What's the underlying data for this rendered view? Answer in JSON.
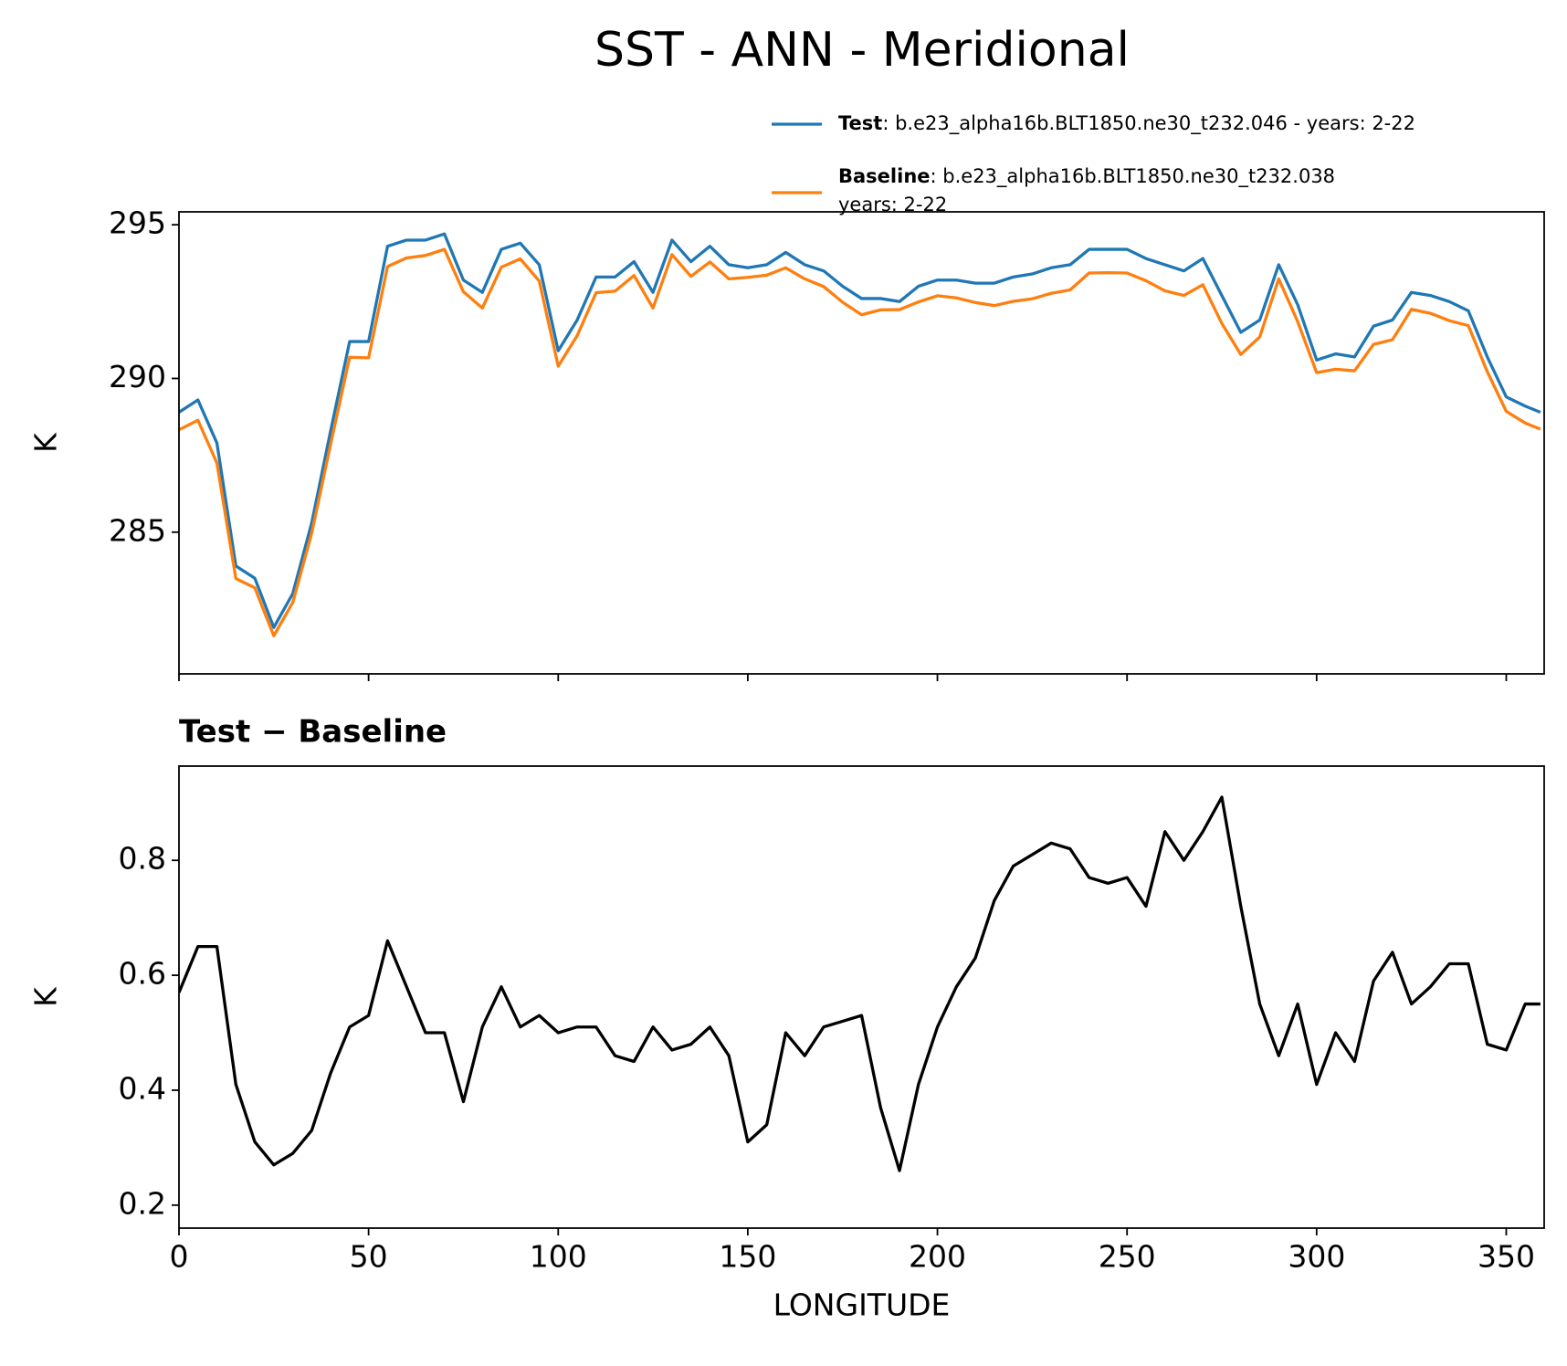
{
  "title": "SST - ANN - Meridional",
  "chart_data": [
    {
      "type": "line",
      "ylabel": "K",
      "x": [
        0,
        5,
        10,
        15,
        20,
        25,
        30,
        35,
        40,
        45,
        50,
        55,
        60,
        65,
        70,
        75,
        80,
        85,
        90,
        95,
        100,
        105,
        110,
        115,
        120,
        125,
        130,
        135,
        140,
        145,
        150,
        155,
        160,
        165,
        170,
        175,
        180,
        185,
        190,
        195,
        200,
        205,
        210,
        215,
        220,
        225,
        230,
        235,
        240,
        245,
        250,
        255,
        260,
        265,
        270,
        275,
        280,
        285,
        290,
        295,
        300,
        305,
        310,
        315,
        320,
        325,
        330,
        335,
        340,
        345,
        350,
        355,
        359
      ],
      "series": [
        {
          "name": "Test",
          "color": "#1f77b4",
          "description": [
            ": b.e23_alpha16b.BLT1850.ne30_t232.046 - years: 2-22"
          ],
          "values": [
            288.9,
            289.3,
            287.9,
            283.9,
            283.5,
            281.9,
            283.0,
            285.3,
            288.3,
            291.2,
            291.2,
            294.3,
            294.5,
            294.5,
            294.7,
            293.2,
            292.8,
            294.2,
            294.4,
            293.7,
            290.9,
            291.9,
            293.3,
            293.3,
            293.8,
            292.8,
            294.5,
            293.8,
            294.3,
            293.7,
            293.6,
            293.7,
            294.1,
            293.7,
            293.5,
            293.0,
            292.6,
            292.6,
            292.5,
            293.0,
            293.2,
            293.2,
            293.1,
            293.1,
            293.3,
            293.4,
            293.6,
            293.7,
            294.2,
            294.2,
            294.2,
            293.9,
            293.7,
            293.5,
            293.9,
            292.7,
            291.5,
            291.9,
            293.7,
            292.4,
            290.6,
            290.8,
            290.7,
            291.7,
            291.9,
            292.8,
            292.7,
            292.5,
            292.2,
            290.7,
            289.4,
            289.1,
            288.9
          ]
        },
        {
          "name": "Baseline",
          "color": "#ff7f0e",
          "description": [
            ": b.e23_alpha16b.BLT1850.ne30_t232.038",
            "years: 2-22"
          ],
          "values": [
            288.33,
            288.64,
            287.25,
            283.49,
            283.19,
            281.63,
            282.71,
            284.97,
            287.87,
            290.69,
            290.67,
            293.64,
            293.92,
            294.0,
            294.2,
            292.82,
            292.29,
            293.62,
            293.89,
            293.17,
            290.4,
            291.39,
            292.79,
            292.84,
            293.35,
            292.29,
            294.03,
            293.32,
            293.79,
            293.24,
            293.29,
            293.36,
            293.6,
            293.24,
            292.99,
            292.48,
            292.07,
            292.23,
            292.24,
            292.49,
            292.69,
            292.62,
            292.47,
            292.37,
            292.51,
            292.59,
            292.77,
            292.88,
            293.43,
            293.44,
            293.43,
            293.18,
            292.85,
            292.7,
            293.05,
            291.79,
            290.78,
            291.35,
            293.24,
            291.85,
            290.19,
            290.3,
            290.25,
            291.11,
            291.26,
            292.25,
            292.12,
            291.88,
            291.72,
            290.22,
            288.93,
            288.55,
            288.35
          ]
        }
      ],
      "xlim": [
        0,
        360
      ],
      "xticks": [
        0,
        50,
        100,
        150,
        200,
        250,
        300,
        350
      ],
      "ylim": [
        280.39,
        295.42
      ],
      "yticks": [
        285,
        290,
        295
      ]
    },
    {
      "type": "line",
      "title": "Test − Baseline",
      "xlabel": "LONGITUDE",
      "ylabel": "K",
      "x": [
        0,
        5,
        10,
        15,
        20,
        25,
        30,
        35,
        40,
        45,
        50,
        55,
        60,
        65,
        70,
        75,
        80,
        85,
        90,
        95,
        100,
        105,
        110,
        115,
        120,
        125,
        130,
        135,
        140,
        145,
        150,
        155,
        160,
        165,
        170,
        175,
        180,
        185,
        190,
        195,
        200,
        205,
        210,
        215,
        220,
        225,
        230,
        235,
        240,
        245,
        250,
        255,
        260,
        265,
        270,
        275,
        280,
        285,
        290,
        295,
        300,
        305,
        310,
        315,
        320,
        325,
        330,
        335,
        340,
        345,
        350,
        355,
        359
      ],
      "series": [
        {
          "color": "#000000",
          "values": [
            0.57,
            0.65,
            0.65,
            0.41,
            0.31,
            0.27,
            0.29,
            0.33,
            0.43,
            0.51,
            0.53,
            0.66,
            0.58,
            0.5,
            0.5,
            0.38,
            0.51,
            0.58,
            0.51,
            0.53,
            0.5,
            0.51,
            0.51,
            0.46,
            0.45,
            0.51,
            0.47,
            0.48,
            0.51,
            0.46,
            0.31,
            0.34,
            0.5,
            0.46,
            0.51,
            0.52,
            0.53,
            0.37,
            0.26,
            0.41,
            0.51,
            0.58,
            0.63,
            0.73,
            0.79,
            0.81,
            0.83,
            0.82,
            0.77,
            0.76,
            0.77,
            0.72,
            0.85,
            0.8,
            0.85,
            0.91,
            0.72,
            0.55,
            0.46,
            0.55,
            0.41,
            0.5,
            0.45,
            0.59,
            0.64,
            0.55,
            0.58,
            0.62,
            0.62,
            0.48,
            0.47,
            0.55,
            0.55
          ]
        }
      ],
      "xlim": [
        0,
        360
      ],
      "xticks": [
        0,
        50,
        100,
        150,
        200,
        250,
        300,
        350
      ],
      "ylim": [
        0.16,
        0.964
      ],
      "yticks": [
        0.2,
        0.4,
        0.6,
        0.8
      ]
    }
  ]
}
